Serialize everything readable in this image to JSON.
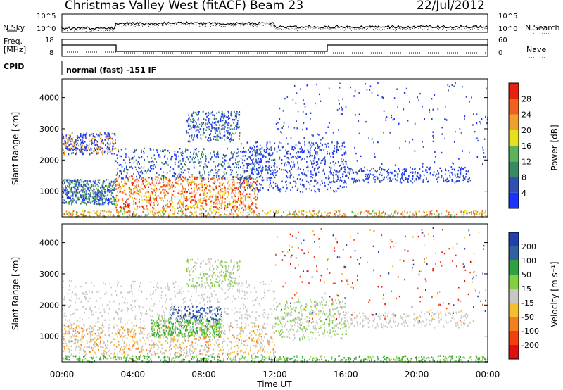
{
  "header": {
    "station": "Christmas Valley West (fitACF)",
    "beam": "Beam 23",
    "date": "22/Jul/2012"
  },
  "status_panels": {
    "nsky_label": "N.Sky",
    "nsearch_label": "N.Search",
    "noise_ticks": [
      "10^5",
      "10^0"
    ],
    "freq_label_1": "Freq.",
    "freq_label_2": "[MHz]",
    "freq_ticks": [
      "18",
      "8"
    ],
    "nave_label": "Nave",
    "nave_ticks": [
      "60",
      "0"
    ],
    "cpid_label": "CPID",
    "cpid_text": "normal (fast) -151 IF"
  },
  "chart_data": [
    {
      "type": "heatmap",
      "title": "",
      "xlabel": "",
      "ylabel": "Slant Range [km]",
      "xlim": [
        "00:00",
        "00:00"
      ],
      "ylim": [
        180,
        4600
      ],
      "y_ticks": [
        1000,
        2000,
        3000,
        4000
      ],
      "colorbar": {
        "label": "Power [dB]",
        "ticks": [
          4,
          8,
          12,
          16,
          20,
          24,
          28
        ],
        "colors": [
          "#1a33ff",
          "#2f4fb3",
          "#3a8a60",
          "#5cb35c",
          "#e6e020",
          "#f0a030",
          "#f06020",
          "#e82010"
        ]
      }
    },
    {
      "type": "heatmap",
      "title": "",
      "xlabel": "Time UT",
      "ylabel": "Slant Range [km]",
      "x_ticks": [
        "00:00",
        "04:00",
        "08:00",
        "12:00",
        "16:00",
        "20:00",
        "00:00"
      ],
      "ylim": [
        180,
        4600
      ],
      "y_ticks": [
        1000,
        2000,
        3000,
        4000
      ],
      "colorbar": {
        "label": "Velocity [m s⁻¹]",
        "ticks": [
          200,
          100,
          50,
          15,
          -15,
          -50,
          -100,
          -200
        ],
        "colors": [
          "#2040b0",
          "#3060a0",
          "#30a040",
          "#80d040",
          "#c8c8c0",
          "#f0c030",
          "#f08020",
          "#f04010",
          "#e01010"
        ]
      }
    }
  ]
}
